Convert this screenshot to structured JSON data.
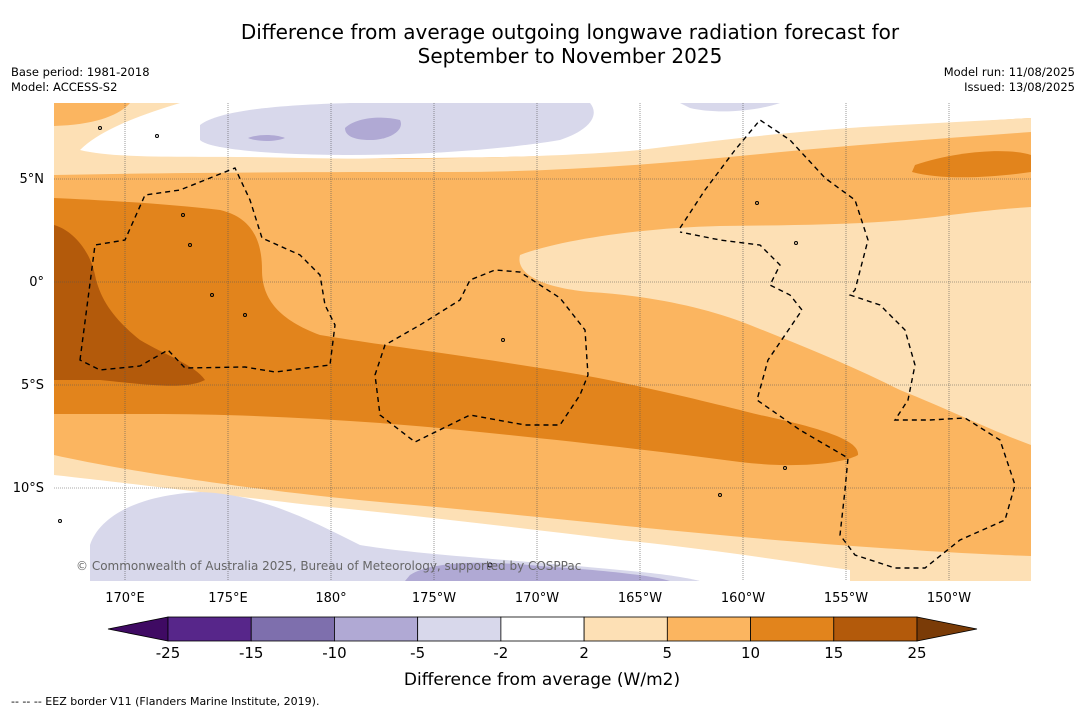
{
  "title_line1": "Difference from average outgoing longwave radiation forecast for",
  "title_line2": "September to November 2025",
  "base_period": "Base period: 1981-2018",
  "model": "Model: ACCESS-S2",
  "model_run": "Model run: 11/08/2025",
  "issued": "Issued: 13/08/2025",
  "copyright": "© Commonwealth of Australia 2025, Bureau of Meteorology, supported by COSPPac",
  "lon_labels": [
    "170°E",
    "175°E",
    "180°",
    "175°W",
    "170°W",
    "165°W",
    "160°W",
    "155°W",
    "150°W"
  ],
  "lat_labels": [
    "5°N",
    "0°",
    "5°S",
    "10°S"
  ],
  "colorbar": {
    "ticks": [
      "-25",
      "-15",
      "-10",
      "-5",
      "-2",
      "2",
      "5",
      "10",
      "15",
      "25"
    ],
    "colors": [
      "#3f0a63",
      "#57268a",
      "#7e6fad",
      "#b0a9d4",
      "#d8d8eb",
      "#ffffff",
      "#fde0b5",
      "#fbb560",
      "#e2841c",
      "#b35a0b",
      "#7a3b07"
    ],
    "title": "Difference from average (W/m2)"
  },
  "legend_text": "--  --  -- EEZ border V11 (Flanders Marine Institute, 2019)."
}
